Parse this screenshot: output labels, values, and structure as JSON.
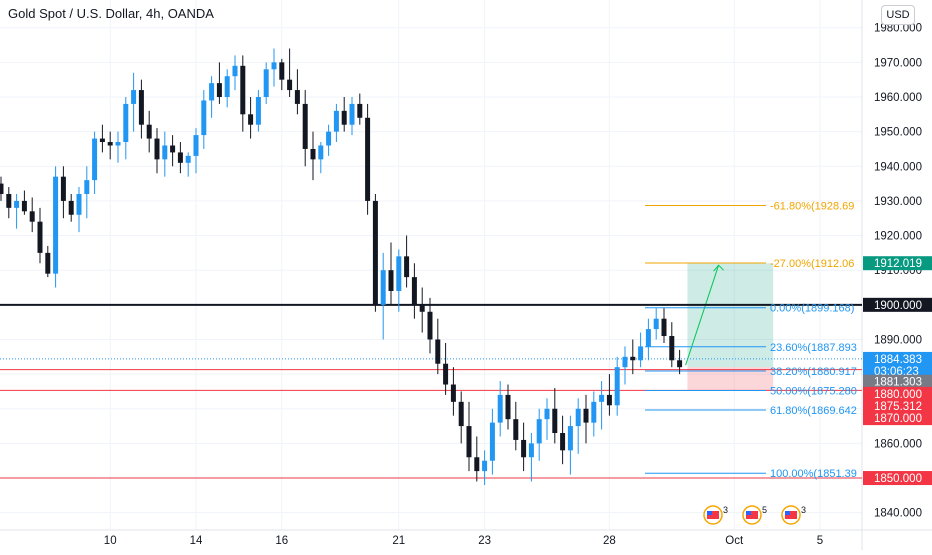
{
  "title": "Gold Spot / U.S. Dollar, 4h, OANDA",
  "currency": "USD",
  "chart_data": {
    "type": "candlestick",
    "y_ticks": [
      "1980.000",
      "1970.000",
      "1960.000",
      "1950.000",
      "1940.000",
      "1930.000",
      "1920.000",
      "1910.000",
      "1900.000",
      "1890.000",
      "1880.000",
      "1870.000",
      "1860.000",
      "1850.000",
      "1840.000"
    ],
    "x_ticks": [
      {
        "label": "10",
        "index": 14
      },
      {
        "label": "14",
        "index": 25
      },
      {
        "label": "16",
        "index": 36
      },
      {
        "label": "21",
        "index": 51
      },
      {
        "label": "23",
        "index": 62
      },
      {
        "label": "28",
        "index": 78
      },
      {
        "label": "Oct",
        "index": 94
      },
      {
        "label": "5",
        "index": 105
      }
    ],
    "ylim": [
      1835.0,
      1988.0
    ],
    "candles": [
      [
        1935,
        1937,
        1930,
        1932
      ],
      [
        1932,
        1934,
        1925,
        1928
      ],
      [
        1928,
        1932,
        1922,
        1930
      ],
      [
        1930,
        1933,
        1926,
        1927
      ],
      [
        1927,
        1931,
        1921,
        1924
      ],
      [
        1924,
        1928,
        1912,
        1915
      ],
      [
        1915,
        1917,
        1908,
        1909
      ],
      [
        1909,
        1940,
        1905,
        1937
      ],
      [
        1937,
        1940,
        1925,
        1930
      ],
      [
        1930,
        1932,
        1924,
        1926
      ],
      [
        1926,
        1934,
        1921,
        1932
      ],
      [
        1932,
        1940,
        1925,
        1936
      ],
      [
        1936,
        1950,
        1932,
        1948
      ],
      [
        1948,
        1952,
        1944,
        1947
      ],
      [
        1947,
        1950,
        1942,
        1946
      ],
      [
        1946,
        1950,
        1941,
        1947
      ],
      [
        1947,
        1960,
        1942,
        1958
      ],
      [
        1958,
        1967,
        1950,
        1962
      ],
      [
        1962,
        1965,
        1948,
        1952
      ],
      [
        1952,
        1956,
        1944,
        1948
      ],
      [
        1948,
        1951,
        1938,
        1942
      ],
      [
        1942,
        1950,
        1937,
        1946
      ],
      [
        1946,
        1949,
        1940,
        1944
      ],
      [
        1944,
        1947,
        1938,
        1941
      ],
      [
        1941,
        1944,
        1937,
        1943
      ],
      [
        1943,
        1951,
        1938,
        1949
      ],
      [
        1949,
        1962,
        1945,
        1959
      ],
      [
        1959,
        1966,
        1954,
        1964
      ],
      [
        1964,
        1970,
        1958,
        1960
      ],
      [
        1960,
        1968,
        1957,
        1966
      ],
      [
        1966,
        1972,
        1962,
        1969
      ],
      [
        1969,
        1972,
        1950,
        1955
      ],
      [
        1955,
        1960,
        1948,
        1952
      ],
      [
        1952,
        1962,
        1950,
        1960
      ],
      [
        1960,
        1970,
        1958,
        1968
      ],
      [
        1968,
        1974,
        1963,
        1970
      ],
      [
        1970,
        1971,
        1962,
        1965
      ],
      [
        1965,
        1974,
        1960,
        1962
      ],
      [
        1962,
        1968,
        1955,
        1958
      ],
      [
        1958,
        1962,
        1940,
        1945
      ],
      [
        1945,
        1950,
        1936,
        1942
      ],
      [
        1942,
        1947,
        1938,
        1946
      ],
      [
        1946,
        1952,
        1943,
        1950
      ],
      [
        1950,
        1958,
        1947,
        1956
      ],
      [
        1956,
        1960,
        1950,
        1952
      ],
      [
        1952,
        1960,
        1949,
        1958
      ],
      [
        1958,
        1961,
        1952,
        1954
      ],
      [
        1954,
        1958,
        1926,
        1930
      ],
      [
        1930,
        1932,
        1898,
        1900
      ],
      [
        1900,
        1915,
        1890,
        1910
      ],
      [
        1910,
        1918,
        1900,
        1904
      ],
      [
        1904,
        1916,
        1898,
        1914
      ],
      [
        1914,
        1920,
        1905,
        1908
      ],
      [
        1908,
        1912,
        1896,
        1900
      ],
      [
        1900,
        1905,
        1892,
        1898
      ],
      [
        1898,
        1902,
        1886,
        1890
      ],
      [
        1890,
        1896,
        1880,
        1883
      ],
      [
        1883,
        1889,
        1874,
        1877
      ],
      [
        1877,
        1882,
        1868,
        1872
      ],
      [
        1872,
        1875,
        1860,
        1865
      ],
      [
        1865,
        1872,
        1852,
        1856
      ],
      [
        1856,
        1862,
        1849,
        1852
      ],
      [
        1852,
        1858,
        1848,
        1855
      ],
      [
        1855,
        1870,
        1851,
        1866
      ],
      [
        1866,
        1878,
        1862,
        1874
      ],
      [
        1874,
        1877,
        1864,
        1867
      ],
      [
        1867,
        1872,
        1858,
        1861
      ],
      [
        1861,
        1866,
        1852,
        1856
      ],
      [
        1856,
        1863,
        1849,
        1860
      ],
      [
        1860,
        1870,
        1855,
        1867
      ],
      [
        1867,
        1873,
        1861,
        1870
      ],
      [
        1870,
        1876,
        1860,
        1863
      ],
      [
        1863,
        1868,
        1854,
        1858
      ],
      [
        1858,
        1868,
        1851,
        1865
      ],
      [
        1865,
        1873,
        1857,
        1870
      ],
      [
        1870,
        1874,
        1860,
        1866
      ],
      [
        1866,
        1875,
        1862,
        1872
      ],
      [
        1872,
        1878,
        1864,
        1874
      ],
      [
        1874,
        1880,
        1868,
        1871
      ],
      [
        1871,
        1885,
        1868,
        1882
      ],
      [
        1882,
        1888,
        1877,
        1885
      ],
      [
        1885,
        1890,
        1880,
        1884
      ],
      [
        1884,
        1892,
        1882,
        1888
      ],
      [
        1888,
        1896,
        1884,
        1893
      ],
      [
        1893,
        1899,
        1890,
        1896
      ],
      [
        1896,
        1899,
        1889,
        1891
      ],
      [
        1891,
        1895,
        1882,
        1884
      ],
      [
        1884,
        1887,
        1880,
        1882
      ]
    ],
    "h_lines": [
      {
        "price": 1900.0,
        "color": "#131722",
        "width": 2
      },
      {
        "price": 1881.303,
        "color": "#f23645",
        "width": 1
      },
      {
        "price": 1875.312,
        "color": "#f23645",
        "width": 1
      },
      {
        "price": 1850.0,
        "color": "#f23645",
        "width": 1
      }
    ],
    "current_price_line": {
      "price": 1884.383,
      "color": "#2196f3"
    },
    "fib_levels": [
      {
        "label": "-61.80%(1928.69",
        "price": 1928.69,
        "color": "#f0a500"
      },
      {
        "label": "-27.00%(1912.06",
        "price": 1912.06,
        "color": "#f0a500"
      },
      {
        "label": "0.00%(1899.168)",
        "price": 1899.168,
        "color": "#2196f3"
      },
      {
        "label": "23.60%(1887.893",
        "price": 1887.893,
        "color": "#2196f3"
      },
      {
        "label": "38.20%(1880.917",
        "price": 1880.917,
        "color": "#2196f3"
      },
      {
        "label": "50.00%(1875.280",
        "price": 1875.28,
        "color": "#2196f3"
      },
      {
        "label": "61.80%(1869.642",
        "price": 1869.642,
        "color": "#2196f3"
      },
      {
        "label": "100.00%(1851.39",
        "price": 1851.39,
        "color": "#2196f3"
      }
    ],
    "position": {
      "entry": 1882.0,
      "target": 1912.019,
      "stop": 1875.312,
      "start_index": 88,
      "end_index": 99
    },
    "price_labels": [
      {
        "text": "1912.019",
        "price": 1912.019,
        "bg": "#089981",
        "fg": "#ffffff"
      },
      {
        "text": "1900.000",
        "price": 1900.0,
        "bg": "#131722",
        "fg": "#ffffff"
      },
      {
        "text": "1884.383",
        "price": 1884.383,
        "bg": "#2196f3",
        "fg": "#ffffff"
      },
      {
        "text": "03:06:23",
        "price": 1880.9,
        "bg": "#2196f3",
        "fg": "#ffffff"
      },
      {
        "text": "1881.303",
        "price": 1877.8,
        "bg": "#787b86",
        "fg": "#ffffff"
      },
      {
        "text": "1880.000",
        "price": 1874.3,
        "bg": "#f23645",
        "fg": "#ffffff"
      },
      {
        "text": "1875.312",
        "price": 1870.8,
        "bg": "#f23645",
        "fg": "#ffffff"
      },
      {
        "text": "1870.000",
        "price": 1867.3,
        "bg": "#f23645",
        "fg": "#ffffff"
      },
      {
        "text": "1850.000",
        "price": 1850.0,
        "bg": "#f23645",
        "fg": "#ffffff"
      }
    ],
    "event_icons": [
      {
        "name": "us-flag-icon-1",
        "label": "3",
        "index": 90
      },
      {
        "name": "us-flag-icon-2",
        "label": "5",
        "index": 95
      },
      {
        "name": "us-flag-icon-3",
        "label": "3",
        "index": 100
      }
    ],
    "colors": {
      "up": "#2196f3",
      "down": "#131722",
      "grid": "#f0f3fa",
      "axis_text": "#131722"
    }
  }
}
